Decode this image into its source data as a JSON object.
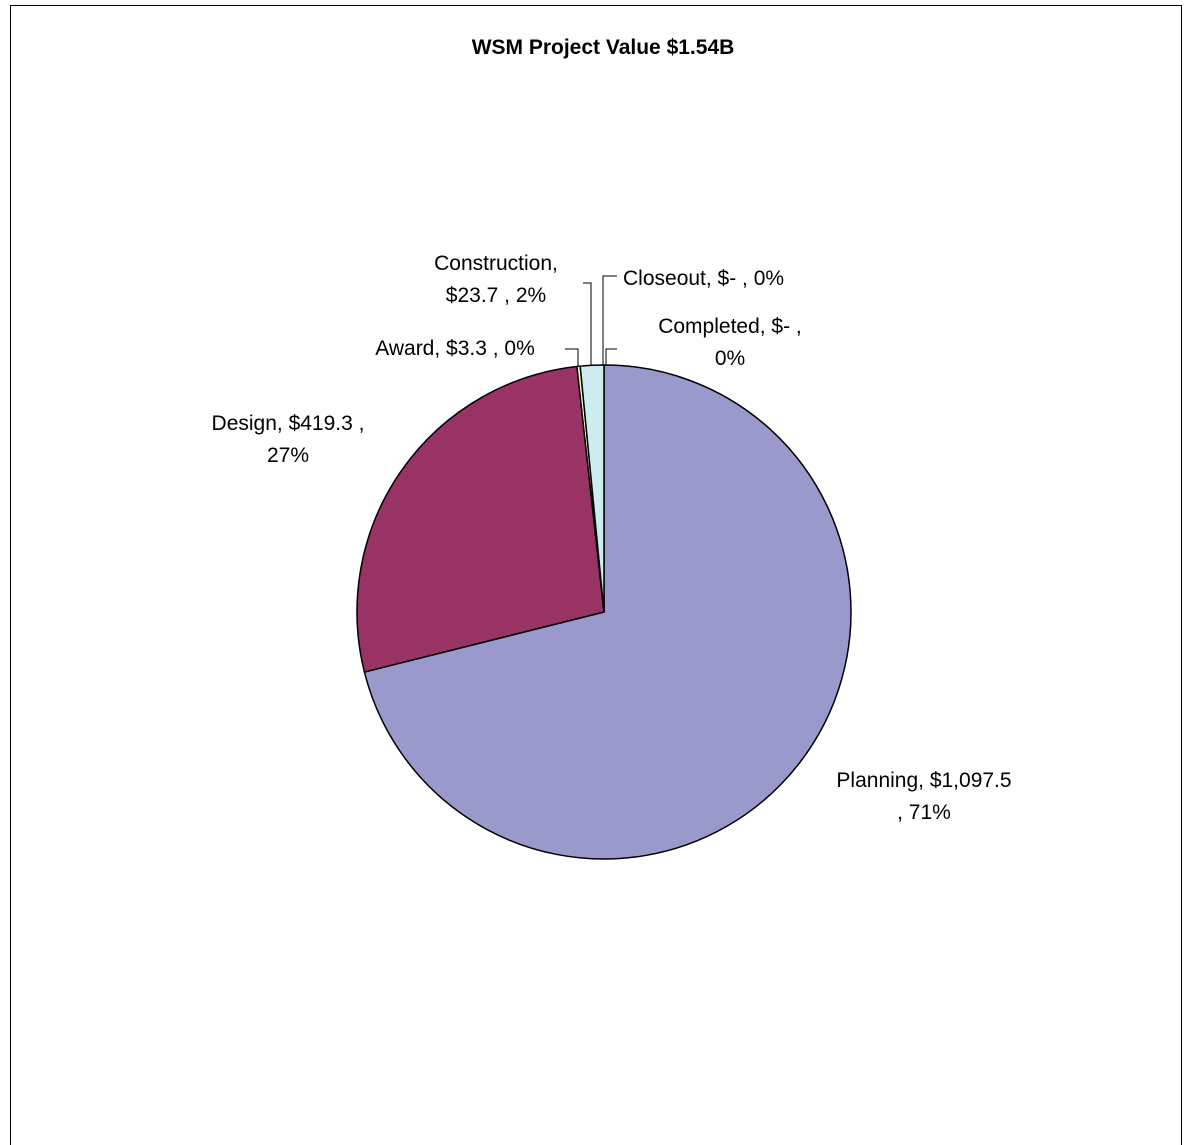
{
  "chart_data": {
    "type": "pie",
    "title": "WSM Project Value $1.54B",
    "start_angle_deg": 0,
    "direction": "clockwise",
    "slices": [
      {
        "name": "Planning",
        "value": 1097.5,
        "label": [
          "Planning,  $1,097.5",
          ", 71%"
        ],
        "color": "#9999CC"
      },
      {
        "name": "Design",
        "value": 419.3,
        "label": [
          "Design,  $419.3 ,",
          "27%"
        ],
        "color": "#993366"
      },
      {
        "name": "Award",
        "value": 3.3,
        "label": [
          "Award,  $3.3 , 0%"
        ],
        "color": "#FFFFCC"
      },
      {
        "name": "Construction",
        "value": 23.7,
        "label": [
          "Construction,",
          "$23.7 , 2%"
        ],
        "color": "#CCECEF"
      },
      {
        "name": "Closeout",
        "value": 0,
        "label": [
          "Closeout,  $-    , 0%"
        ],
        "color": "#660066"
      },
      {
        "name": "Completed",
        "value": 0,
        "label": [
          "Completed,  $-    ,",
          "0%"
        ],
        "color": "#FF8080"
      }
    ]
  }
}
